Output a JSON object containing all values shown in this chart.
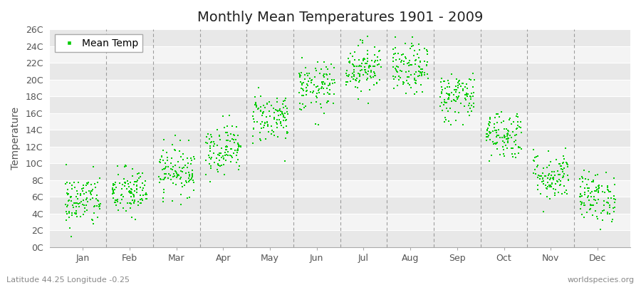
{
  "title": "Monthly Mean Temperatures 1901 - 2009",
  "ylabel": "Temperature",
  "subtitle": "Latitude 44.25 Longitude -0.25",
  "watermark": "worldspecies.org",
  "legend_label": "Mean Temp",
  "dot_color": "#00cc00",
  "bg_color": "#ffffff",
  "plot_bg_color": "#ffffff",
  "grid_color_light": "#e0e0e0",
  "grid_color_dark": "#cccccc",
  "dashed_line_color": "#888888",
  "ylim": [
    0,
    26
  ],
  "ytick_labels": [
    "0C",
    "2C",
    "4C",
    "6C",
    "8C",
    "10C",
    "12C",
    "14C",
    "16C",
    "18C",
    "20C",
    "22C",
    "24C",
    "26C"
  ],
  "ytick_values": [
    0,
    2,
    4,
    6,
    8,
    10,
    12,
    14,
    16,
    18,
    20,
    22,
    24,
    26
  ],
  "months": [
    "Jan",
    "Feb",
    "Mar",
    "Apr",
    "May",
    "Jun",
    "Jul",
    "Aug",
    "Sep",
    "Oct",
    "Nov",
    "Dec"
  ],
  "month_means": [
    5.5,
    6.5,
    9.2,
    11.8,
    15.5,
    19.0,
    21.5,
    21.2,
    18.0,
    13.5,
    8.5,
    6.0
  ],
  "month_stds": [
    1.6,
    1.5,
    1.5,
    1.5,
    1.5,
    1.5,
    1.5,
    1.5,
    1.5,
    1.5,
    1.5,
    1.5
  ],
  "n_years": 109,
  "marker_size": 2,
  "title_fontsize": 14,
  "axis_fontsize": 10,
  "tick_fontsize": 9,
  "label_fontsize": 8
}
